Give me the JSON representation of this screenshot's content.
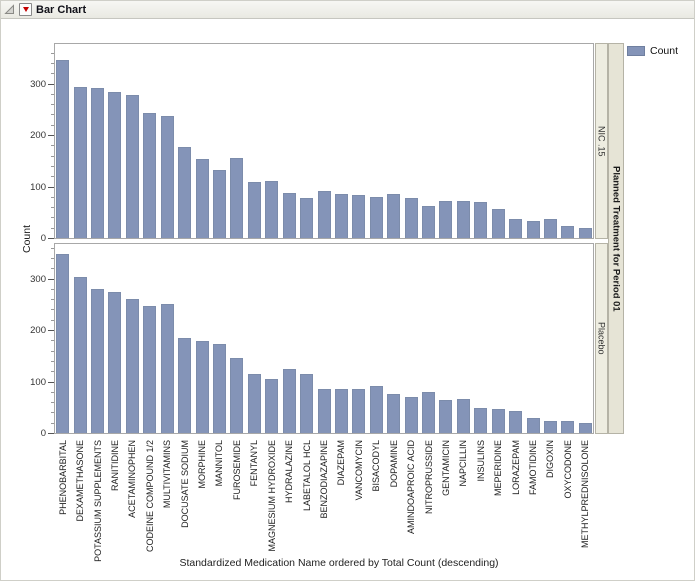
{
  "header": {
    "title": "Bar Chart",
    "disclosure_icon": "disclosure-triangle",
    "menu_icon": "red-triangle-menu"
  },
  "legend": {
    "swatch_color": "#8494b8",
    "label": "Count"
  },
  "chart_data": {
    "type": "bar",
    "title": "Bar Chart",
    "xlabel": "Standardized Medication Name ordered by Total Count (descending)",
    "ylabel": "Count",
    "panel_group_label": "Planned Treatment for Period 01",
    "legend_position": "top-right",
    "grid": false,
    "bar_color": "#8494b8",
    "y_ticks": [
      0,
      100,
      200,
      300
    ],
    "minor_tick_step": 20,
    "ylim": [
      0,
      380
    ],
    "categories": [
      "PHENOBARBITAL",
      "DEXAMETHASONE",
      "POTASSIUM SUPPLEMENTS",
      "RANITIDINE",
      "ACETAMINOPHEN",
      "CODEINE COMPOUND 1/2",
      "MULTIVITAMINS",
      "DOCUSATE SODIUM",
      "MORPHINE",
      "MANNITOL",
      "FUROSEMIDE",
      "FENTANYL",
      "MAGNESIUM HYDROXIDE",
      "HYDRALAZINE",
      "LABETALOL HCL",
      "BENZODIAZAPINE",
      "DIAZEPAM",
      "VANCOMYCIN",
      "BISACODYL",
      "DOPAMINE",
      "AMINDOAPROIC ACID",
      "NITROPRUSSIDE",
      "GENTAMICIN",
      "NAPCILLIN",
      "INSULINS",
      "MEPERIDINE",
      "LORAZEPAM",
      "FAMOTIDINE",
      "DIGOXIN",
      "OXYCODONE",
      "METHYLPREDNISOLONE"
    ],
    "series": [
      {
        "name": "NIC .15",
        "values": [
          346,
          294,
          291,
          284,
          278,
          243,
          237,
          176,
          154,
          132,
          156,
          108,
          110,
          88,
          78,
          92,
          86,
          84,
          80,
          86,
          77,
          63,
          71,
          71,
          69,
          56,
          37,
          33,
          36,
          24,
          19
        ]
      },
      {
        "name": "Placebo",
        "values": [
          348,
          302,
          280,
          274,
          260,
          247,
          251,
          185,
          179,
          173,
          146,
          115,
          105,
          125,
          114,
          86,
          86,
          86,
          91,
          76,
          70,
          79,
          64,
          66,
          49,
          46,
          43,
          30,
          24,
          24,
          20
        ]
      }
    ]
  }
}
